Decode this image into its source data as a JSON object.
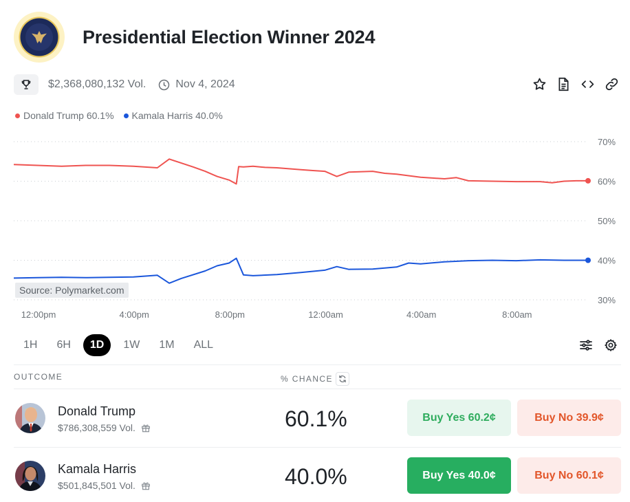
{
  "market": {
    "title": "Presidential Election Winner 2024",
    "volume": "$2,368,080,132 Vol.",
    "date": "Nov 4, 2024"
  },
  "icons": {
    "seal": "presidential-seal-icon",
    "trophy": "trophy-icon",
    "clock": "clock-icon",
    "star": "star-icon",
    "document": "document-icon",
    "embed": "code-icon",
    "link": "link-icon",
    "filters": "sliders-icon",
    "settings": "gear-icon",
    "refresh": "refresh-icon",
    "gift": "gift-icon"
  },
  "legend": [
    {
      "label": "Donald Trump 60.1%",
      "color": "#ef5350"
    },
    {
      "label": "Kamala Harris 40.0%",
      "color": "#1a56db"
    }
  ],
  "chart_data": {
    "type": "line",
    "source": "Source: Polymarket.com",
    "x_ticks": [
      "12:00pm",
      "4:00pm",
      "8:00pm",
      "12:00am",
      "4:00am",
      "8:00am"
    ],
    "y_ticks": [
      "70%",
      "60%",
      "50%",
      "40%",
      "30%"
    ],
    "ylim": [
      30,
      70
    ],
    "x_range_hours": [
      0,
      24
    ],
    "series": [
      {
        "name": "Donald Trump",
        "color": "#ef5350",
        "x": [
          0,
          0.5,
          1,
          2,
          3,
          4,
          5,
          6,
          6.5,
          7,
          7.5,
          8,
          8.5,
          9,
          9.3,
          9.4,
          9.6,
          10,
          10.5,
          11,
          12,
          12.5,
          13,
          13.5,
          14,
          15,
          15.5,
          16,
          17,
          17.5,
          18,
          18.5,
          19,
          20,
          21,
          22,
          22.5,
          23,
          23.5,
          24
        ],
        "values": [
          64.2,
          64.1,
          64.0,
          63.8,
          64.0,
          64.0,
          63.8,
          63.4,
          65.6,
          64.6,
          63.6,
          62.5,
          61.2,
          60.3,
          59.3,
          63.7,
          63.6,
          63.8,
          63.5,
          63.4,
          62.9,
          62.7,
          62.5,
          61.2,
          62.3,
          62.5,
          62.0,
          61.8,
          61.0,
          60.8,
          60.6,
          60.9,
          60.1,
          60.0,
          59.9,
          59.9,
          59.6,
          60.0,
          60.1,
          60.1
        ]
      },
      {
        "name": "Kamala Harris",
        "color": "#1a56db",
        "x": [
          0,
          1,
          2,
          3,
          4,
          5,
          6,
          6.5,
          7,
          8,
          8.5,
          9,
          9.3,
          9.6,
          10,
          11,
          12,
          13,
          13.5,
          14,
          15,
          16,
          16.5,
          17,
          18,
          19,
          20,
          21,
          22,
          23,
          24
        ],
        "values": [
          35.5,
          35.6,
          35.7,
          35.6,
          35.7,
          35.8,
          36.2,
          34.2,
          35.4,
          37.3,
          38.6,
          39.3,
          40.5,
          36.3,
          36.1,
          36.4,
          36.9,
          37.5,
          38.4,
          37.7,
          37.8,
          38.3,
          39.3,
          39.1,
          39.6,
          39.9,
          40.0,
          39.9,
          40.1,
          40.0,
          40.0
        ]
      }
    ],
    "legend_position": "top-left",
    "grid": "horizontal-dotted"
  },
  "ranges": [
    "1H",
    "6H",
    "1D",
    "1W",
    "1M",
    "ALL"
  ],
  "active_range": "1D",
  "table": {
    "col_outcome": "OUTCOME",
    "col_chance": "% CHANCE",
    "rows": [
      {
        "name": "Donald Trump",
        "volume": "$786,308,559 Vol.",
        "chance": "60.1%",
        "buy_yes": "Buy Yes 60.2¢",
        "buy_no": "Buy No 39.9¢"
      },
      {
        "name": "Kamala Harris",
        "volume": "$501,845,501 Vol.",
        "chance": "40.0%",
        "buy_yes": "Buy Yes 40.0¢",
        "buy_no": "Buy No 60.1¢"
      }
    ]
  }
}
